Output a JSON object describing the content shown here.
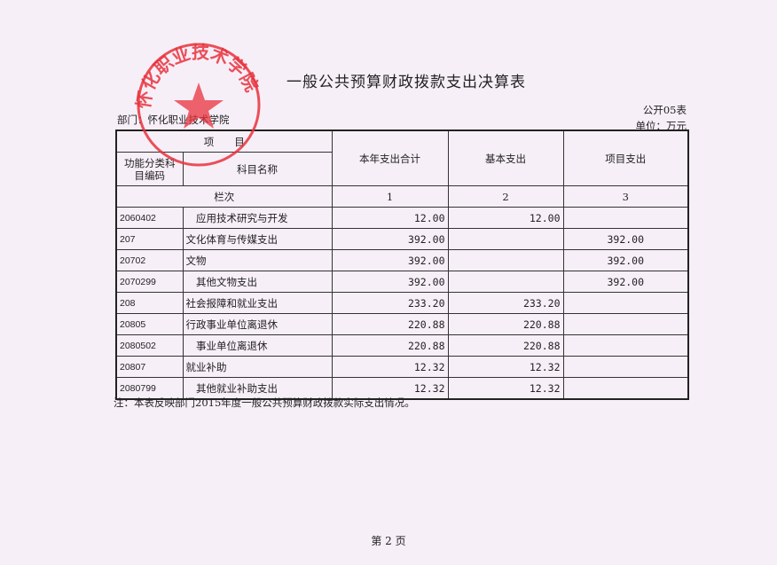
{
  "title": "一般公共预算财政拨款支出决算表",
  "form_no": "公开05表",
  "department": "部门：怀化职业技术学院",
  "unit": "单位：万元",
  "stamp_text": "怀化职业技术学院",
  "stamp_color": "#e8323c",
  "headers": {
    "item": "项　　目",
    "code": "功能分类科目编码",
    "name": "科目名称",
    "total": "本年支出合计",
    "basic": "基本支出",
    "project": "项目支出",
    "row_no": "栏次",
    "col1": "1",
    "col2": "2",
    "col3": "3"
  },
  "rows": [
    {
      "code": "2060402",
      "name": "　应用技术研究与开发",
      "total": "12.00",
      "basic": "12.00",
      "project": ""
    },
    {
      "code": "207",
      "name": "文化体育与传媒支出",
      "total": "392.00",
      "basic": "",
      "project": "392.00"
    },
    {
      "code": "20702",
      "name": "文物",
      "total": "392.00",
      "basic": "",
      "project": "392.00"
    },
    {
      "code": "2070299",
      "name": "　其他文物支出",
      "total": "392.00",
      "basic": "",
      "project": "392.00"
    },
    {
      "code": "208",
      "name": "社会报障和就业支出",
      "total": "233.20",
      "basic": "233.20",
      "project": ""
    },
    {
      "code": "20805",
      "name": "行政事业单位离退休",
      "total": "220.88",
      "basic": "220.88",
      "project": ""
    },
    {
      "code": "2080502",
      "name": "　事业单位离退休",
      "total": "220.88",
      "basic": "220.88",
      "project": ""
    },
    {
      "code": "20807",
      "name": "就业补助",
      "total": "12.32",
      "basic": "12.32",
      "project": ""
    },
    {
      "code": "2080799",
      "name": "　其他就业补助支出",
      "total": "12.32",
      "basic": "12.32",
      "project": ""
    }
  ],
  "note": "注：本表反映部门2015年度一般公共预算财政拨款实际支出情况。",
  "page": "第 2 页"
}
